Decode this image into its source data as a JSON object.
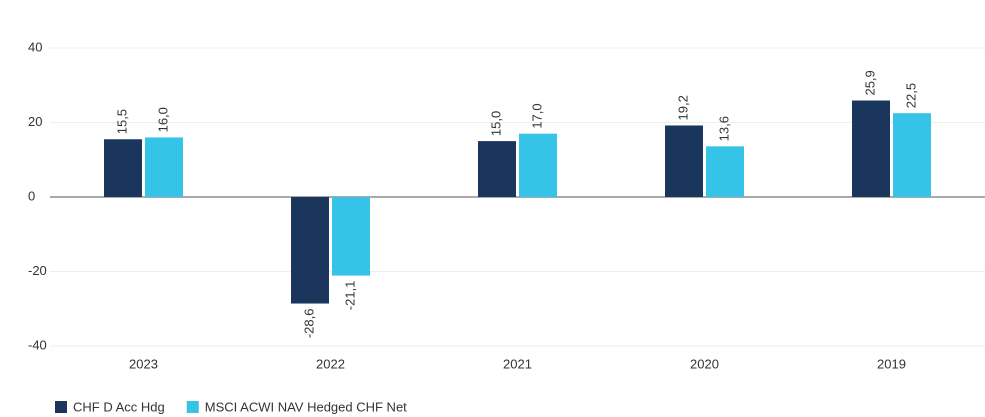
{
  "chart_data": {
    "type": "bar",
    "categories": [
      "2023",
      "2022",
      "2021",
      "2020",
      "2019"
    ],
    "series": [
      {
        "name": "CHF D Acc Hdg",
        "color": "#1b365d",
        "values": [
          15.5,
          -28.6,
          15.0,
          19.2,
          25.9
        ],
        "value_labels": [
          "15,5",
          "-28,6",
          "15,0",
          "19,2",
          "25,9"
        ]
      },
      {
        "name": "MSCI ACWI NAV Hedged CHF Net",
        "color": "#35c4e8",
        "values": [
          16.0,
          -21.1,
          17.0,
          13.6,
          22.5
        ],
        "value_labels": [
          "16,0",
          "-21,1",
          "17,0",
          "13,6",
          "22,5"
        ]
      }
    ],
    "ylim": [
      -40,
      40
    ],
    "yticks": [
      40,
      20,
      0,
      -20,
      -40
    ],
    "grid": true
  }
}
